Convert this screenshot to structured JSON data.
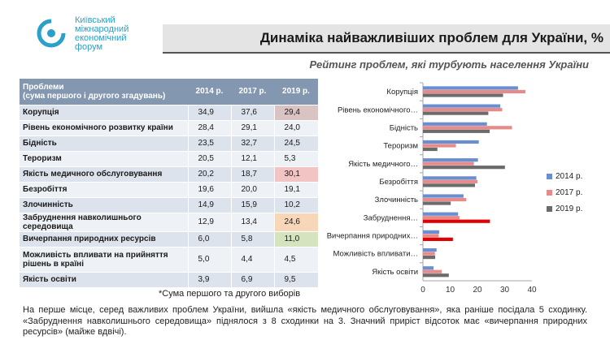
{
  "header": {
    "logo_lines": [
      "Київський",
      "міжнародний",
      "економічний",
      "форум"
    ],
    "title": "Динаміка найважливіших проблем для України, %",
    "subtitle": "Рейтинг проблем, які турбують населення України"
  },
  "table": {
    "header_line1": "Проблеми",
    "header_line2": "(сума першого і другого згадувань)",
    "years": [
      "2014 р.",
      "2017 р.",
      "2019 р."
    ],
    "rows": [
      {
        "name": "Корупція",
        "v": [
          "34,9",
          "37,6",
          "29,4"
        ],
        "hl": "#d9c3c3"
      },
      {
        "name": "Рівень економічного розвитку країни",
        "v": [
          "28,4",
          "29,1",
          "24,0"
        ],
        "hl": ""
      },
      {
        "name": "Бідність",
        "v": [
          "23,5",
          "32,7",
          "24,5"
        ],
        "hl": ""
      },
      {
        "name": "Тероризм",
        "v": [
          "20,5",
          "12,1",
          "5,3"
        ],
        "hl": ""
      },
      {
        "name": "Якість медичного обслуговування",
        "v": [
          "20,2",
          "18,7",
          "30,1"
        ],
        "hl": "#f2c4c4"
      },
      {
        "name": "Безробіття",
        "v": [
          "19,6",
          "20,0",
          "19,1"
        ],
        "hl": ""
      },
      {
        "name": "Злочинність",
        "v": [
          "14,9",
          "15,9",
          "10,2"
        ],
        "hl": ""
      },
      {
        "name": "Забруднення навколишнього середовища",
        "v": [
          "12,9",
          "13,4",
          "24,6"
        ],
        "hl": "#f8d7b8"
      },
      {
        "name": "Вичерпання природних ресурсів",
        "v": [
          "6,0",
          "5,8",
          "11,0"
        ],
        "hl": "#d6e3bf"
      },
      {
        "name": "Можливість впливати на прийняття рішень в країні",
        "v": [
          "5,0",
          "4,4",
          "4,5"
        ],
        "hl": ""
      },
      {
        "name": "Якість освіти",
        "v": [
          "3,9",
          "6,9",
          "9,5"
        ],
        "hl": ""
      }
    ]
  },
  "chart_data": {
    "type": "bar",
    "orientation": "horizontal",
    "categories": [
      "Корупція",
      "Рівень економічного…",
      "Бідність",
      "Тероризм",
      "Якість медичного…",
      "Безробіття",
      "Злочинність",
      "Забруднення…",
      "Вичерпання природних…",
      "Можливість впливати…",
      "Якість освіти"
    ],
    "series": [
      {
        "name": "2014 р.",
        "color": "#6a8fd0",
        "values": [
          34.9,
          28.4,
          23.5,
          20.5,
          20.2,
          19.6,
          14.9,
          12.9,
          6.0,
          5.0,
          3.9
        ]
      },
      {
        "name": "2017 р.",
        "color": "#e68a8a",
        "values": [
          37.6,
          29.1,
          32.7,
          12.1,
          18.7,
          20.0,
          15.9,
          13.4,
          5.8,
          4.4,
          6.9
        ]
      },
      {
        "name": "2019 р.",
        "color": "#6b6b6b",
        "values": [
          29.4,
          24.0,
          24.5,
          5.3,
          30.1,
          19.1,
          10.2,
          24.6,
          11.0,
          4.5,
          9.5
        ]
      }
    ],
    "highlight_2019": {
      "color": "#e00000",
      "categories": [
        "Забруднення…",
        "Вичерпання природних…"
      ]
    },
    "xticks": [
      "0",
      "10",
      "20",
      "30",
      "40"
    ],
    "xlim": [
      0,
      40
    ],
    "legend_position": "right"
  },
  "footnote": "*Сума першого та другого виборів",
  "summary": "На перше місце, серед важливих проблем України, вийшла «якість медичного обслуговування», яка раніше посідала 5 сходинку. «Забруднення навколишнього середовища» піднялося з 8 сходинки на 3. Значний приріст відсоток має «вичерпання природних ресурсів» (майже вдвічі)."
}
